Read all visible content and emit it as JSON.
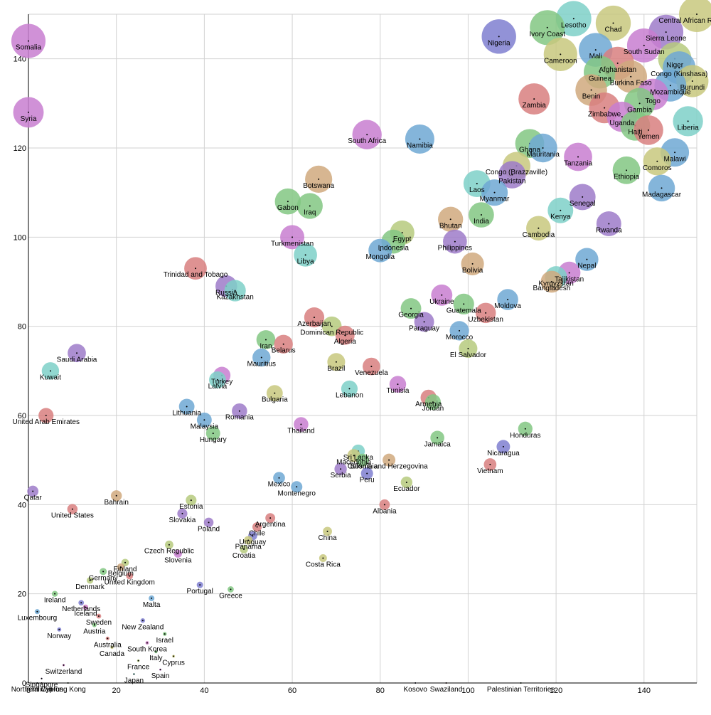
{
  "chart_data": {
    "type": "scatter",
    "title": "",
    "xlabel": "",
    "ylabel": "",
    "xlim": [
      0,
      152
    ],
    "ylim": [
      0,
      150
    ],
    "x_ticks": [
      0,
      20,
      40,
      60,
      80,
      100,
      120,
      140
    ],
    "y_ticks": [
      0,
      20,
      40,
      60,
      80,
      100,
      120,
      140
    ],
    "grid": true,
    "size_scale": "bubble size grows with y value",
    "palette": [
      "#9e7bc9",
      "#6fa8d3",
      "#d87f7f",
      "#82c782",
      "#d0a97e",
      "#c8c87e",
      "#7ed0c8",
      "#d07ec8",
      "#7f7fd0",
      "#b6ca7e"
    ],
    "points": [
      {
        "label": "Somalia",
        "x": 0,
        "y": 144,
        "color": "#c87ed0"
      },
      {
        "label": "Syria",
        "x": 0,
        "y": 128,
        "color": "#c87ed0"
      },
      {
        "label": "Qatar",
        "x": 1,
        "y": 43,
        "color": "#9e7bc9"
      },
      {
        "label": "United Arab Emirates",
        "x": 4,
        "y": 60,
        "color": "#d87f7f"
      },
      {
        "label": "Kuwait",
        "x": 5,
        "y": 70,
        "color": "#7ed0c8"
      },
      {
        "label": "Saudi Arabia",
        "x": 11,
        "y": 74,
        "color": "#9e7bc9"
      },
      {
        "label": "Luxembourg",
        "x": 2,
        "y": 16,
        "color": "#6fa8d3"
      },
      {
        "label": "Ireland",
        "x": 6,
        "y": 20,
        "color": "#82c782"
      },
      {
        "label": "Norway",
        "x": 7,
        "y": 12,
        "color": "#7f7fd0"
      },
      {
        "label": "Switzerland",
        "x": 8,
        "y": 4,
        "color": "#d07ec8"
      },
      {
        "label": "Singapore",
        "x": 3,
        "y": 1,
        "color": "#9e7bc9"
      },
      {
        "label": "Northern Cyprus",
        "x": 2,
        "y": 0,
        "color": "#6fa8d3"
      },
      {
        "label": "Taiwan",
        "x": 3,
        "y": 0,
        "color": "#d87f7f"
      },
      {
        "label": "Hong Kong",
        "x": 9,
        "y": 0,
        "color": "#82c782"
      },
      {
        "label": "United States",
        "x": 10,
        "y": 39,
        "color": "#d87f7f"
      },
      {
        "label": "Bahrain",
        "x": 20,
        "y": 42,
        "color": "#d0a97e"
      },
      {
        "label": "Netherlands",
        "x": 12,
        "y": 18,
        "color": "#7f7fd0"
      },
      {
        "label": "Denmark",
        "x": 14,
        "y": 23,
        "color": "#b6ca7e"
      },
      {
        "label": "Sweden",
        "x": 16,
        "y": 15,
        "color": "#d87f7f"
      },
      {
        "label": "Austria",
        "x": 15,
        "y": 13,
        "color": "#82c782"
      },
      {
        "label": "Iceland",
        "x": 13,
        "y": 17,
        "color": "#d07ec8"
      },
      {
        "label": "Germany",
        "x": 17,
        "y": 25,
        "color": "#82c782"
      },
      {
        "label": "Australia",
        "x": 18,
        "y": 10,
        "color": "#d87f7f"
      },
      {
        "label": "Canada",
        "x": 19,
        "y": 8,
        "color": "#c8c87e"
      },
      {
        "label": "Belgium",
        "x": 21,
        "y": 26,
        "color": "#d0a97e"
      },
      {
        "label": "Finland",
        "x": 22,
        "y": 27,
        "color": "#b6ca7e"
      },
      {
        "label": "United Kingdom",
        "x": 23,
        "y": 24,
        "color": "#d87f7f"
      },
      {
        "label": "Malta",
        "x": 28,
        "y": 19,
        "color": "#6fa8d3"
      },
      {
        "label": "New Zealand",
        "x": 26,
        "y": 14,
        "color": "#7f7fd0"
      },
      {
        "label": "South Korea",
        "x": 27,
        "y": 9,
        "color": "#d07ec8"
      },
      {
        "label": "France",
        "x": 25,
        "y": 5,
        "color": "#b6ca7e"
      },
      {
        "label": "Japan",
        "x": 24,
        "y": 2,
        "color": "#7ed0c8"
      },
      {
        "label": "Italy",
        "x": 29,
        "y": 7,
        "color": "#82c782"
      },
      {
        "label": "Israel",
        "x": 31,
        "y": 11,
        "color": "#82c782"
      },
      {
        "label": "Spain",
        "x": 30,
        "y": 3,
        "color": "#c87ed0"
      },
      {
        "label": "Cyprus",
        "x": 33,
        "y": 6,
        "color": "#c8c87e"
      },
      {
        "label": "Czech Republic",
        "x": 32,
        "y": 31,
        "color": "#b6ca7e"
      },
      {
        "label": "Slovenia",
        "x": 34,
        "y": 29,
        "color": "#c87ed0"
      },
      {
        "label": "Portugal",
        "x": 39,
        "y": 22,
        "color": "#7f7fd0"
      },
      {
        "label": "Greece",
        "x": 46,
        "y": 21,
        "color": "#82c782"
      },
      {
        "label": "Estonia",
        "x": 37,
        "y": 41,
        "color": "#b6ca7e"
      },
      {
        "label": "Slovakia",
        "x": 35,
        "y": 38,
        "color": "#9e7bc9"
      },
      {
        "label": "Poland",
        "x": 41,
        "y": 36,
        "color": "#9e7bc9"
      },
      {
        "label": "Lithuania",
        "x": 36,
        "y": 62,
        "color": "#6fa8d3"
      },
      {
        "label": "Malaysia",
        "x": 40,
        "y": 59,
        "color": "#6fa8d3"
      },
      {
        "label": "Hungary",
        "x": 42,
        "y": 56,
        "color": "#82c782"
      },
      {
        "label": "Romania",
        "x": 48,
        "y": 61,
        "color": "#9e7bc9"
      },
      {
        "label": "Latvia",
        "x": 43,
        "y": 68,
        "color": "#7ed0c8"
      },
      {
        "label": "Turkey",
        "x": 44,
        "y": 69,
        "color": "#c87ed0"
      },
      {
        "label": "Trinidad and Tobago",
        "x": 38,
        "y": 93,
        "color": "#d87f7f"
      },
      {
        "label": "Kazakhstan",
        "x": 47,
        "y": 88,
        "color": "#7ed0c8"
      },
      {
        "label": "Russia",
        "x": 45,
        "y": 89,
        "color": "#9e7bc9"
      },
      {
        "label": "Argentina",
        "x": 55,
        "y": 37,
        "color": "#d87f7f"
      },
      {
        "label": "Uruguay",
        "x": 51,
        "y": 33,
        "color": "#7f7fd0"
      },
      {
        "label": "Panama",
        "x": 50,
        "y": 32,
        "color": "#c8c87e"
      },
      {
        "label": "Croatia",
        "x": 49,
        "y": 30,
        "color": "#b6ca7e"
      },
      {
        "label": "Chile",
        "x": 52,
        "y": 35,
        "color": "#d87f7f"
      },
      {
        "label": "Iran",
        "x": 54,
        "y": 77,
        "color": "#82c782"
      },
      {
        "label": "Belarus",
        "x": 58,
        "y": 76,
        "color": "#d87f7f"
      },
      {
        "label": "Mauritius",
        "x": 53,
        "y": 73,
        "color": "#6fa8d3"
      },
      {
        "label": "Bulgaria",
        "x": 56,
        "y": 65,
        "color": "#c8c87e"
      },
      {
        "label": "Mexico",
        "x": 57,
        "y": 46,
        "color": "#6fa8d3"
      },
      {
        "label": "Montenegro",
        "x": 61,
        "y": 44,
        "color": "#6fa8d3"
      },
      {
        "label": "Thailand",
        "x": 62,
        "y": 58,
        "color": "#c87ed0"
      },
      {
        "label": "Turkmenistan",
        "x": 60,
        "y": 100,
        "color": "#c87ed0"
      },
      {
        "label": "Libya",
        "x": 63,
        "y": 96,
        "color": "#7ed0c8"
      },
      {
        "label": "Gabon",
        "x": 59,
        "y": 108,
        "color": "#82c782"
      },
      {
        "label": "Iraq",
        "x": 64,
        "y": 107,
        "color": "#82c782"
      },
      {
        "label": "Botswana",
        "x": 66,
        "y": 113,
        "color": "#d0a97e"
      },
      {
        "label": "Azerbaijan",
        "x": 65,
        "y": 82,
        "color": "#d87f7f"
      },
      {
        "label": "Dominican Republic",
        "x": 69,
        "y": 80,
        "color": "#b6ca7e"
      },
      {
        "label": "Algeria",
        "x": 72,
        "y": 78,
        "color": "#d87f7f"
      },
      {
        "label": "Brazil",
        "x": 70,
        "y": 72,
        "color": "#c8c87e"
      },
      {
        "label": "Venezuela",
        "x": 78,
        "y": 71,
        "color": "#d87f7f"
      },
      {
        "label": "Lebanon",
        "x": 73,
        "y": 66,
        "color": "#7ed0c8"
      },
      {
        "label": "China",
        "x": 68,
        "y": 34,
        "color": "#c8c87e"
      },
      {
        "label": "Costa Rica",
        "x": 67,
        "y": 28,
        "color": "#c8c87e"
      },
      {
        "label": "Sri Lanka",
        "x": 75,
        "y": 52,
        "color": "#7ed0c8"
      },
      {
        "label": "Macedonia",
        "x": 74,
        "y": 51,
        "color": "#c8c87e"
      },
      {
        "label": "Colombia",
        "x": 76,
        "y": 50,
        "color": "#82c782"
      },
      {
        "label": "Bosnia and Herzegovina",
        "x": 82,
        "y": 50,
        "color": "#d0a97e"
      },
      {
        "label": "Serbia",
        "x": 71,
        "y": 48,
        "color": "#9e7bc9"
      },
      {
        "label": "Peru",
        "x": 77,
        "y": 47,
        "color": "#7f7fd0"
      },
      {
        "label": "Ecuador",
        "x": 86,
        "y": 45,
        "color": "#b6ca7e"
      },
      {
        "label": "Albania",
        "x": 81,
        "y": 40,
        "color": "#d87f7f"
      },
      {
        "label": "South Africa",
        "x": 77,
        "y": 123,
        "color": "#c87ed0"
      },
      {
        "label": "Egypt",
        "x": 85,
        "y": 101,
        "color": "#b6ca7e"
      },
      {
        "label": "Indonesia",
        "x": 83,
        "y": 99,
        "color": "#82c782"
      },
      {
        "label": "Mongolia",
        "x": 80,
        "y": 97,
        "color": "#6fa8d3"
      },
      {
        "label": "Tunisia",
        "x": 84,
        "y": 67,
        "color": "#c87ed0"
      },
      {
        "label": "Georgia",
        "x": 87,
        "y": 84,
        "color": "#82c782"
      },
      {
        "label": "Paraguay",
        "x": 90,
        "y": 81,
        "color": "#9e7bc9"
      },
      {
        "label": "Armenia",
        "x": 91,
        "y": 64,
        "color": "#d87f7f"
      },
      {
        "label": "Jordan",
        "x": 92,
        "y": 63,
        "color": "#82c782"
      },
      {
        "label": "Jamaica",
        "x": 93,
        "y": 55,
        "color": "#82c782"
      },
      {
        "label": "Ukraine",
        "x": 94,
        "y": 87,
        "color": "#c87ed0"
      },
      {
        "label": "Guatemala",
        "x": 99,
        "y": 85,
        "color": "#82c782"
      },
      {
        "label": "Morocco",
        "x": 98,
        "y": 79,
        "color": "#6fa8d3"
      },
      {
        "label": "El Salvador",
        "x": 100,
        "y": 75,
        "color": "#b6ca7e"
      },
      {
        "label": "Namibia",
        "x": 89,
        "y": 122,
        "color": "#6fa8d3"
      },
      {
        "label": "Bhutan",
        "x": 96,
        "y": 104,
        "color": "#d0a97e"
      },
      {
        "label": "Philippines",
        "x": 97,
        "y": 99,
        "color": "#9e7bc9"
      },
      {
        "label": "Bolivia",
        "x": 101,
        "y": 94,
        "color": "#d0a97e"
      },
      {
        "label": "India",
        "x": 103,
        "y": 105,
        "color": "#82c782"
      },
      {
        "label": "Laos",
        "x": 102,
        "y": 112,
        "color": "#7ed0c8"
      },
      {
        "label": "Myanmar",
        "x": 106,
        "y": 110,
        "color": "#6fa8d3"
      },
      {
        "label": "Uzbekistan",
        "x": 104,
        "y": 83,
        "color": "#d87f7f"
      },
      {
        "label": "Moldova",
        "x": 109,
        "y": 86,
        "color": "#6fa8d3"
      },
      {
        "label": "Honduras",
        "x": 113,
        "y": 57,
        "color": "#82c782"
      },
      {
        "label": "Nicaragua",
        "x": 108,
        "y": 53,
        "color": "#7f7fd0"
      },
      {
        "label": "Vietnam",
        "x": 105,
        "y": 49,
        "color": "#d87f7f"
      },
      {
        "label": "Nigeria",
        "x": 107,
        "y": 145,
        "color": "#7f7fd0"
      },
      {
        "label": "Congo (Brazzaville)",
        "x": 111,
        "y": 116,
        "color": "#c8c87e"
      },
      {
        "label": "Pakistan",
        "x": 110,
        "y": 114,
        "color": "#9e7bc9"
      },
      {
        "label": "Ghana",
        "x": 114,
        "y": 121,
        "color": "#82c782"
      },
      {
        "label": "Mauritania",
        "x": 117,
        "y": 120,
        "color": "#6fa8d3"
      },
      {
        "label": "Cambodia",
        "x": 116,
        "y": 102,
        "color": "#c8c87e"
      },
      {
        "label": "Kenya",
        "x": 121,
        "y": 106,
        "color": "#7ed0c8"
      },
      {
        "label": "Senegal",
        "x": 126,
        "y": 109,
        "color": "#9e7bc9"
      },
      {
        "label": "Tanzania",
        "x": 125,
        "y": 118,
        "color": "#c87ed0"
      },
      {
        "label": "Rwanda",
        "x": 132,
        "y": 103,
        "color": "#9e7bc9"
      },
      {
        "label": "Nepal",
        "x": 127,
        "y": 95,
        "color": "#6fa8d3"
      },
      {
        "label": "Tajikistan",
        "x": 123,
        "y": 92,
        "color": "#c87ed0"
      },
      {
        "label": "Kyrgyzstan",
        "x": 120,
        "y": 91,
        "color": "#7ed0c8"
      },
      {
        "label": "Bangladesh",
        "x": 119,
        "y": 90,
        "color": "#d0a97e"
      },
      {
        "label": "Ivory Coast",
        "x": 118,
        "y": 147,
        "color": "#82c782"
      },
      {
        "label": "Lesotho",
        "x": 124,
        "y": 149,
        "color": "#7ed0c8"
      },
      {
        "label": "Cameroon",
        "x": 121,
        "y": 141,
        "color": "#c8c87e"
      },
      {
        "label": "Mali",
        "x": 129,
        "y": 142,
        "color": "#6fa8d3"
      },
      {
        "label": "Chad",
        "x": 133,
        "y": 148,
        "color": "#c8c87e"
      },
      {
        "label": "Zambia",
        "x": 115,
        "y": 131,
        "color": "#d87f7f"
      },
      {
        "label": "Guinea",
        "x": 130,
        "y": 137,
        "color": "#82c782"
      },
      {
        "label": "Afghanistan",
        "x": 134,
        "y": 139,
        "color": "#d87f7f"
      },
      {
        "label": "Burkina Faso",
        "x": 137,
        "y": 136,
        "color": "#d0a97e"
      },
      {
        "label": "Benin",
        "x": 128,
        "y": 133,
        "color": "#d0a97e"
      },
      {
        "label": "Zimbabwe",
        "x": 131,
        "y": 129,
        "color": "#d87f7f"
      },
      {
        "label": "Uganda",
        "x": 135,
        "y": 127,
        "color": "#c87ed0"
      },
      {
        "label": "Haiti",
        "x": 138,
        "y": 125,
        "color": "#82c782"
      },
      {
        "label": "Gambia",
        "x": 139,
        "y": 130,
        "color": "#82c782"
      },
      {
        "label": "Yemen",
        "x": 141,
        "y": 124,
        "color": "#d87f7f"
      },
      {
        "label": "Togo",
        "x": 142,
        "y": 132,
        "color": "#c87ed0"
      },
      {
        "label": "South Sudan",
        "x": 140,
        "y": 143,
        "color": "#c87ed0"
      },
      {
        "label": "Sierra Leone",
        "x": 145,
        "y": 146,
        "color": "#9e7bc9"
      },
      {
        "label": "Central African Republic",
        "x": 152,
        "y": 150,
        "color": "#c8c87e"
      },
      {
        "label": "Congo (Kinshasa)",
        "x": 148,
        "y": 138,
        "color": "#6fa8d3"
      },
      {
        "label": "Niger",
        "x": 147,
        "y": 140,
        "color": "#b6ca7e"
      },
      {
        "label": "Mozambique",
        "x": 146,
        "y": 134,
        "color": "#6fa8d3"
      },
      {
        "label": "Burundi",
        "x": 151,
        "y": 135,
        "color": "#c8c87e"
      },
      {
        "label": "Liberia",
        "x": 150,
        "y": 126,
        "color": "#7ed0c8"
      },
      {
        "label": "Malawi",
        "x": 147,
        "y": 119,
        "color": "#6fa8d3"
      },
      {
        "label": "Comoros",
        "x": 143,
        "y": 117,
        "color": "#c8c87e"
      },
      {
        "label": "Ethiopia",
        "x": 136,
        "y": 115,
        "color": "#82c782"
      },
      {
        "label": "Madagascar",
        "x": 144,
        "y": 111,
        "color": "#6fa8d3"
      },
      {
        "label": "Kosovo",
        "x": 88,
        "y": 0,
        "color": "#7f7fd0"
      },
      {
        "label": "Swaziland",
        "x": 95,
        "y": 0,
        "color": "#d87f7f"
      },
      {
        "label": "Palestinian Territories",
        "x": 112,
        "y": 0,
        "color": "#82c782"
      }
    ]
  }
}
